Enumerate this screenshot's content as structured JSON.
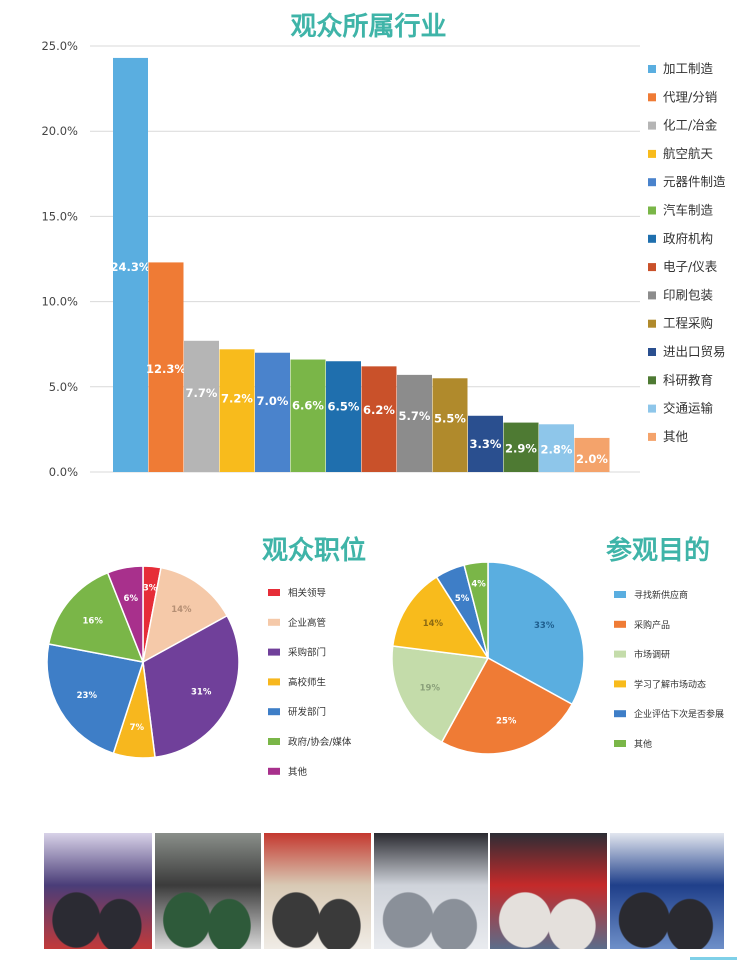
{
  "bar_title": "观众所属行业",
  "pie1_title": "观众职位",
  "pie2_title": "参观目的",
  "chart_data": [
    {
      "type": "bar",
      "title": "观众所属行业",
      "ylim": [
        0,
        25
      ],
      "yticks": [
        "0.0%",
        "5.0%",
        "10.0%",
        "15.0%",
        "20.0%",
        "25.0%"
      ],
      "grid": true,
      "legend": "right",
      "categories": [
        "加工制造",
        "代理/分销",
        "化工/冶金",
        "航空航天",
        "元器件制造",
        "汽车制造",
        "政府机构",
        "电子/仪表",
        "印刷包装",
        "工程采购",
        "进出口贸易",
        "科研教育",
        "交通运输",
        "其他"
      ],
      "values": [
        24.3,
        12.3,
        7.7,
        7.2,
        7.0,
        6.6,
        6.5,
        6.2,
        5.7,
        5.5,
        3.3,
        2.9,
        2.8,
        2.0
      ],
      "labels": [
        "24.3%",
        "12.3%",
        "7.7%",
        "7.2%",
        "7.0%",
        "6.6%",
        "6.5%",
        "6.2%",
        "5.7%",
        "5.5%",
        "3.3%",
        "2.9%",
        "2.8%",
        "2.0%"
      ],
      "colors": [
        "#5aaee0",
        "#ef7b35",
        "#b5b5b5",
        "#f8bb1c",
        "#4a83cc",
        "#7ab648",
        "#1f6fae",
        "#c9512a",
        "#8c8c8c",
        "#b08a2c",
        "#2a4f8f",
        "#4e7a33",
        "#8ec6ea",
        "#f4a36b"
      ]
    },
    {
      "type": "pie",
      "title": "观众职位",
      "legend": "right",
      "categories": [
        "相关领导",
        "企业高管",
        "采购部门",
        "高校师生",
        "研发部门",
        "政府/协会/媒体",
        "其他"
      ],
      "values": [
        3,
        14,
        31,
        7,
        23,
        16,
        6
      ],
      "labels": [
        "3%",
        "14%",
        "31%",
        "7%",
        "23%",
        "16%",
        "6%"
      ],
      "colors": [
        "#e62d38",
        "#f5c9a9",
        "#70409a",
        "#f7b71e",
        "#3e7ec7",
        "#7ab648",
        "#a8308c"
      ]
    },
    {
      "type": "pie",
      "title": "参观目的",
      "legend": "right",
      "categories": [
        "寻找新供应商",
        "采购产品",
        "市场调研",
        "学习了解市场动态",
        "企业评估下次是否参展",
        "其他"
      ],
      "values": [
        33,
        25,
        19,
        14,
        5,
        4
      ],
      "labels": [
        "33%",
        "25%",
        "19%",
        "14%",
        "5%",
        "4%"
      ],
      "colors": [
        "#5aaee0",
        "#ef7b35",
        "#c4dcaa",
        "#f8bb1c",
        "#3e7ec7",
        "#7ab648"
      ]
    }
  ],
  "photos": [
    {
      "name": "photo-booth-visitors",
      "colors": [
        "#4a3d78",
        "#d8d2e8",
        "#2b2b33",
        "#c23a3a"
      ]
    },
    {
      "name": "photo-machine-inspection",
      "colors": [
        "#3b3b3b",
        "#8a8f8a",
        "#2e5a3a",
        "#d9d9d9"
      ]
    },
    {
      "name": "photo-exhibition-aisle",
      "colors": [
        "#d8c9b4",
        "#c4382f",
        "#3a3a3a",
        "#f0ece6"
      ]
    },
    {
      "name": "photo-crowded-hall",
      "colors": [
        "#cfd3da",
        "#2a2a30",
        "#8a9099",
        "#e9ebef"
      ]
    },
    {
      "name": "photo-booth-discussion",
      "colors": [
        "#c52a2a",
        "#2d2d35",
        "#e4e0dc",
        "#5b6d8a"
      ]
    },
    {
      "name": "photo-blue-booth",
      "colors": [
        "#1f3f8a",
        "#e2e6ef",
        "#2a2a30",
        "#6e8fc8"
      ]
    }
  ]
}
